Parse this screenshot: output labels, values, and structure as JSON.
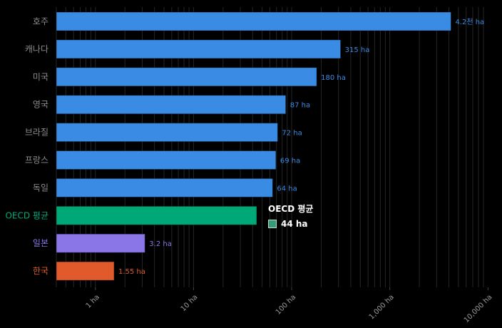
{
  "chart_data": {
    "type": "bar",
    "orientation": "horizontal",
    "x_scale": "log",
    "xlim": [
      0.4,
      11000
    ],
    "grid": "vertical, log minor lines",
    "legend": "none",
    "categories": [
      "호주",
      "캐나다",
      "미국",
      "영국",
      "브라질",
      "프랑스",
      "독일",
      "OECD 평균",
      "일본",
      "한국"
    ],
    "values": [
      4200,
      315,
      180,
      87,
      72,
      69,
      64,
      44,
      3.2,
      1.55
    ],
    "value_labels": [
      "4.2천 ha",
      "315 ha",
      "180 ha",
      "87 ha",
      "72 ha",
      "69 ha",
      "64 ha",
      "",
      "3.2 ha",
      "1.55 ha"
    ],
    "colors": [
      "#3a8be3",
      "#3a8be3",
      "#3a8be3",
      "#3a8be3",
      "#3a8be3",
      "#3a8be3",
      "#3a8be3",
      "#00a878",
      "#8a76e6",
      "#e05a2b"
    ],
    "label_colors": [
      "#8c8c8c",
      "#8c8c8c",
      "#8c8c8c",
      "#8c8c8c",
      "#8c8c8c",
      "#8c8c8c",
      "#8c8c8c",
      "#00a878",
      "#8a76e6",
      "#e05a2b"
    ],
    "value_label_color_default": "#3a8be3",
    "x_ticks": [
      1,
      10,
      100,
      1000,
      10000
    ],
    "x_tick_labels": [
      "1 ha",
      "10 ha",
      "100 ha",
      "1,000 ha",
      "10,000 ha"
    ],
    "tooltip": {
      "title": "OECD 평균",
      "value": "44 ha",
      "color": "#2f9e76"
    }
  }
}
